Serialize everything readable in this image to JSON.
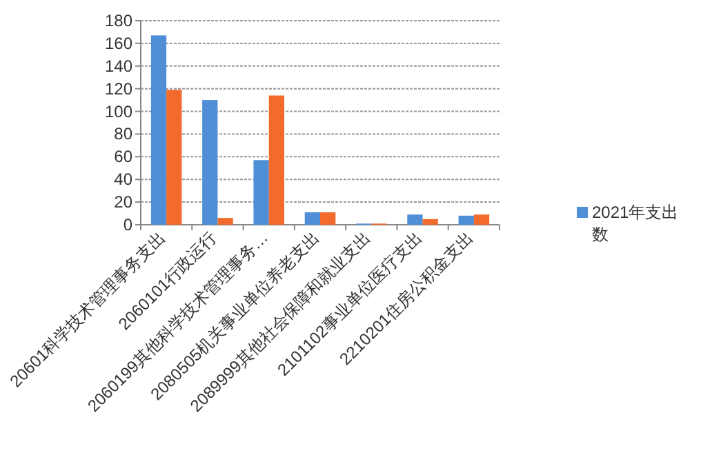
{
  "chart_data": {
    "type": "bar",
    "categories": [
      "20601科学技术管理事务支出",
      "2060101行政运行",
      "2060199其他科学技术管理事务…",
      "2080505机关事业单位养老支出",
      "2089999其他社会保障和就业支出",
      "2101102事业单位医疗支出",
      "2210201住房公积金支出"
    ],
    "series": [
      {
        "name": "2021年支出数",
        "color": "#4f8fd8",
        "values": [
          167,
          110,
          57,
          11,
          1,
          9,
          8
        ]
      },
      {
        "color": "#f26b2c",
        "values": [
          119,
          6,
          114,
          11,
          1,
          5,
          9
        ]
      }
    ],
    "ylim": [
      0,
      180
    ],
    "yticks": [
      0,
      20,
      40,
      60,
      80,
      100,
      120,
      140,
      160,
      180
    ],
    "grid": "y",
    "legend": "right"
  }
}
